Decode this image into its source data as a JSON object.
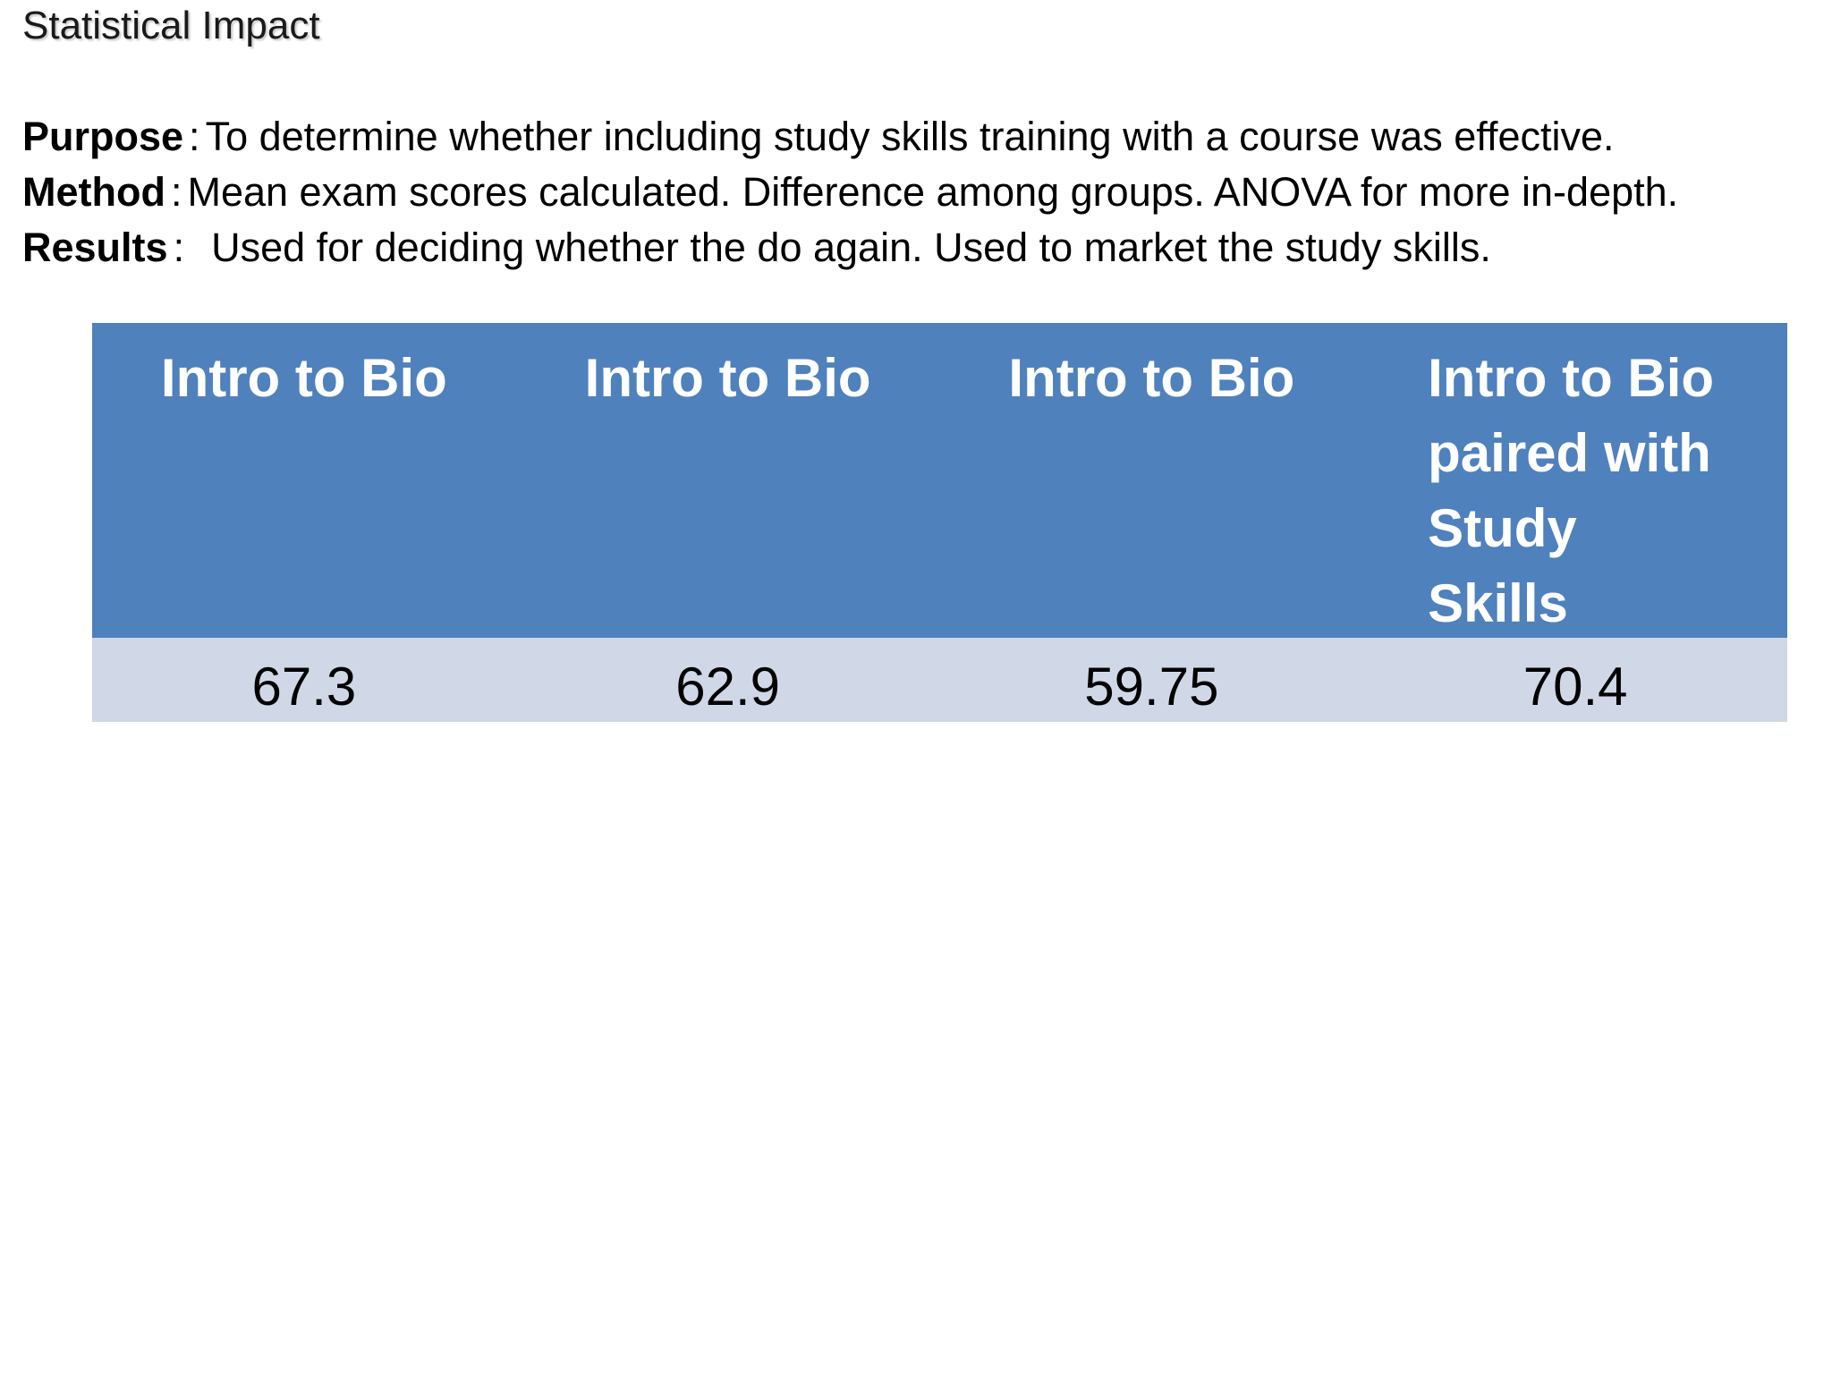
{
  "slide": {
    "title": "Statistical Impact"
  },
  "description": {
    "purpose": {
      "label": "Purpose",
      "separator": ":",
      "text": "To determine whether including study skills training with a course was effective."
    },
    "method": {
      "label": "Method",
      "separator": ":",
      "text": "Mean exam scores calculated. Difference among groups. ANOVA for more in-depth."
    },
    "results": {
      "label": "Results",
      "separator": ":",
      "text": "Used for deciding whether the do again. Used to market the study skills."
    }
  },
  "table": {
    "headers": [
      "Intro to Bio",
      "Intro to Bio",
      "Intro to Bio",
      "Intro to Bio paired with Study Skills"
    ],
    "values": [
      "67.3",
      "62.9",
      "59.75",
      "70.4"
    ]
  },
  "colors": {
    "header_bg": "#4f81bd",
    "row_bg": "#d0d8e8",
    "header_text": "#ffffff"
  }
}
